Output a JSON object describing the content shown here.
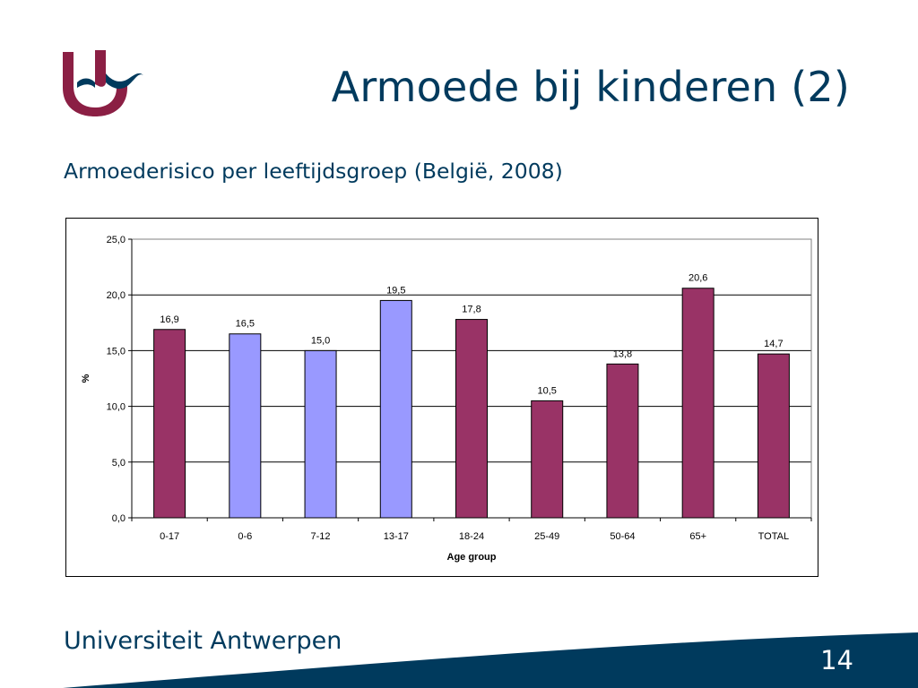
{
  "slide": {
    "title": "Armoede bij kinderen (2)",
    "subtitle": "Armoederisico per leeftijdsgroep (België, 2008)",
    "page_number": "14"
  },
  "branding": {
    "university_name_part1": "Universiteit",
    "university_name_part2": " Antwerpen",
    "logo_icon": "ua-logo-icon",
    "colors": {
      "navy": "#003a5d",
      "burgundy": "#8b1f44",
      "bar_highlight": "#9999ff",
      "bar_default": "#993366"
    }
  },
  "chart_data": {
    "type": "bar",
    "categories": [
      "0-17",
      "0-6",
      "7-12",
      "13-17",
      "18-24",
      "25-49",
      "50-64",
      "65+",
      "TOTAL"
    ],
    "values": [
      16.9,
      16.5,
      15.0,
      19.5,
      17.8,
      10.5,
      13.8,
      20.6,
      14.7
    ],
    "value_labels": [
      "16,9",
      "16,5",
      "15,0",
      "19,5",
      "17,8",
      "10,5",
      "13,8",
      "20,6",
      "14,7"
    ],
    "bar_colors": [
      "#993366",
      "#9999ff",
      "#9999ff",
      "#9999ff",
      "#993366",
      "#993366",
      "#993366",
      "#993366",
      "#993366"
    ],
    "xlabel": "Age group",
    "ylabel": "%",
    "ylim": [
      0,
      25
    ],
    "yticks": [
      0,
      5,
      10,
      15,
      20,
      25
    ],
    "ytick_labels": [
      "0,0",
      "5,0",
      "10,0",
      "15,0",
      "20,0",
      "25,0"
    ],
    "grid": true,
    "legend": false
  }
}
